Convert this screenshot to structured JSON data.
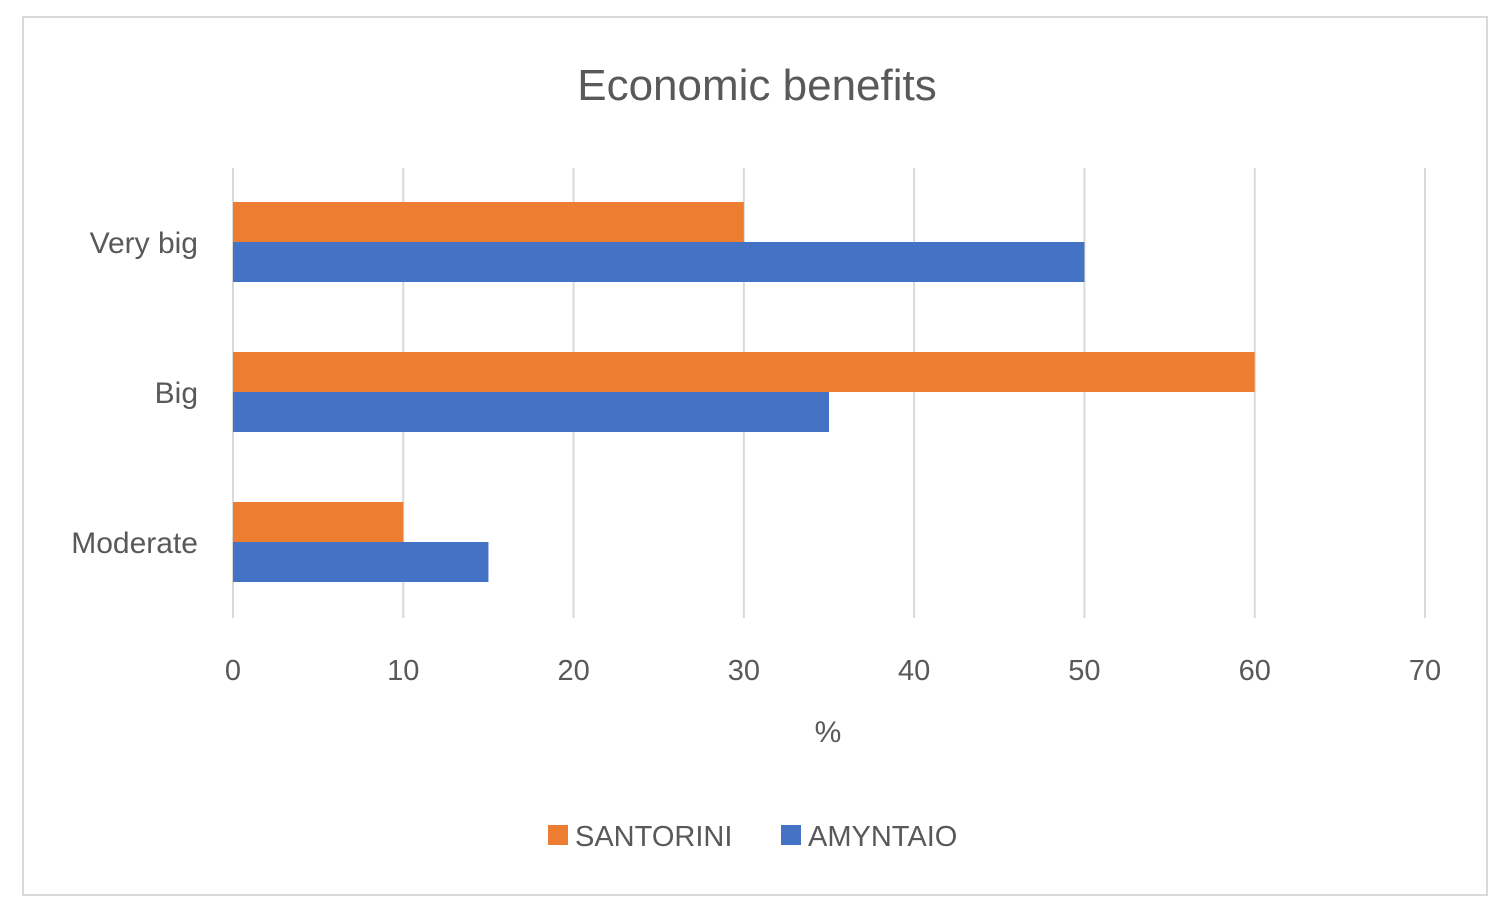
{
  "chart_data": {
    "type": "bar",
    "orientation": "horizontal",
    "title": "Economic benefits",
    "xlabel": "%",
    "ylabel": "",
    "xlim": [
      0,
      70
    ],
    "xticks": [
      0,
      10,
      20,
      30,
      40,
      50,
      60,
      70
    ],
    "categories": [
      "Very big",
      "Big",
      "Moderate"
    ],
    "series": [
      {
        "name": "SANTORINI",
        "color": "#ED7D31",
        "values": [
          30,
          60,
          10
        ]
      },
      {
        "name": "AMYNTAIO",
        "color": "#4472C4",
        "values": [
          50,
          35,
          15
        ]
      }
    ],
    "grid": true,
    "legend_position": "bottom"
  }
}
